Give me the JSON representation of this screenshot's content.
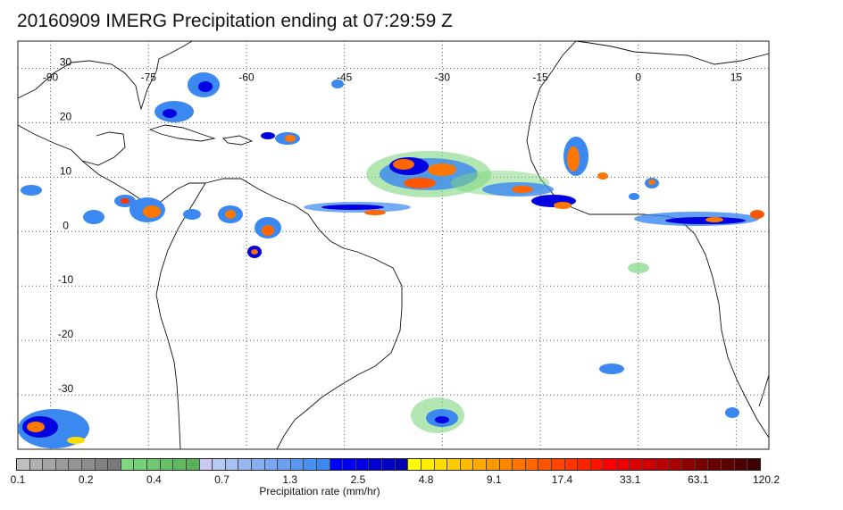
{
  "title": "20160909 IMERG Precipitation ending at 07:29:59 Z",
  "map": {
    "lon_range": [
      -95,
      20
    ],
    "lat_range": [
      -40,
      35
    ],
    "lon_ticks": [
      -90,
      -75,
      -60,
      -45,
      -30,
      -15,
      0,
      15
    ],
    "lat_ticks": [
      30,
      20,
      10,
      0,
      -10,
      -20,
      -30
    ],
    "grid_lines": "dotted"
  },
  "colorbar": {
    "label": "Precipitation rate (mm/hr)",
    "tick_labels": [
      "0.1",
      "0.2",
      "0.4",
      "0.7",
      "1.3",
      "2.5",
      "4.8",
      "9.1",
      "17.4",
      "33.1",
      "63.1",
      "120.2"
    ],
    "colors": [
      "#bebebe",
      "#b0b0b0",
      "#a6a6a6",
      "#9c9c9c",
      "#969696",
      "#8c8c8c",
      "#828282",
      "#787878",
      "#7fd67f",
      "#78d078",
      "#70c870",
      "#68c068",
      "#60b860",
      "#58b058",
      "#c8c8f0",
      "#b8c8f0",
      "#a8c0f0",
      "#98b8f0",
      "#88b0f0",
      "#78a8f0",
      "#6aa0f0",
      "#5a98f0",
      "#4a90f0",
      "#3a88f0",
      "#0000ff",
      "#0000f0",
      "#0000e0",
      "#0000d0",
      "#0000c0",
      "#0000b0",
      "#ffff00",
      "#ffee00",
      "#ffdd00",
      "#ffcc00",
      "#ffbb00",
      "#ffaa00",
      "#ff9900",
      "#ff8800",
      "#ff7700",
      "#ff6600",
      "#ff5500",
      "#ff4400",
      "#ff3300",
      "#ff2200",
      "#ff1100",
      "#ff0000",
      "#ee0000",
      "#dd0000",
      "#cc0000",
      "#bb0000",
      "#aa0000",
      "#8b0000",
      "#7a0000",
      "#6b0000",
      "#5c0000",
      "#4d0000",
      "#3e0000"
    ]
  }
}
